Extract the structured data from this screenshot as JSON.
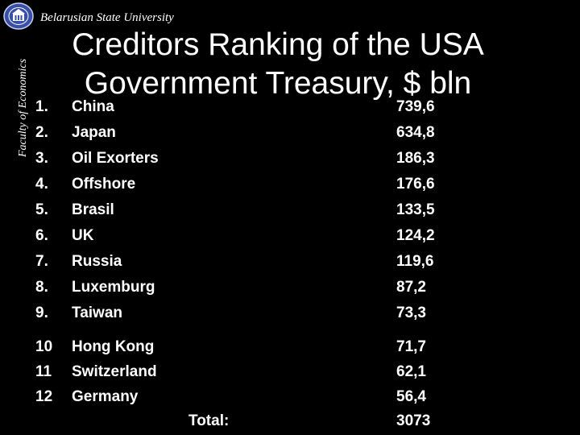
{
  "header": {
    "university": "Belarusian State University",
    "faculty": "Faculty of Economics",
    "logo_icon": "university-seal-icon"
  },
  "title_lines": [
    "Creditors Ranking of the USA",
    "Government Treasury, $ bln"
  ],
  "rows": [
    {
      "num": "1.",
      "country": "China",
      "value": "739,6"
    },
    {
      "num": "2.",
      "country": "Japan",
      "value": "634,8"
    },
    {
      "num": "3.",
      "country": "Oil Exorters",
      "value": "186,3"
    },
    {
      "num": "4.",
      "country": "Offshore",
      "value": "176,6"
    },
    {
      "num": "5.",
      "country": "Brasil",
      "value": "133,5"
    },
    {
      "num": "6.",
      "country": "UK",
      "value": "124,2"
    },
    {
      "num": "7.",
      "country": "Russia",
      "value": "119,6"
    },
    {
      "num": "8.",
      "country": "Luxemburg",
      "value": "87,2"
    },
    {
      "num": "9.",
      "country": "Taiwan",
      "value": "73,3"
    },
    {
      "num": "10",
      "country": "Hong Kong",
      "value": "71,7"
    },
    {
      "num": "11",
      "country": "Switzerland",
      "value": "62,1"
    },
    {
      "num": "12",
      "country": "Germany",
      "value": "56,4"
    }
  ],
  "total": {
    "label": "Total:",
    "value": "3073"
  },
  "colors": {
    "background": "#000000",
    "text": "#ffffff",
    "logo": "#3a4fa8"
  }
}
